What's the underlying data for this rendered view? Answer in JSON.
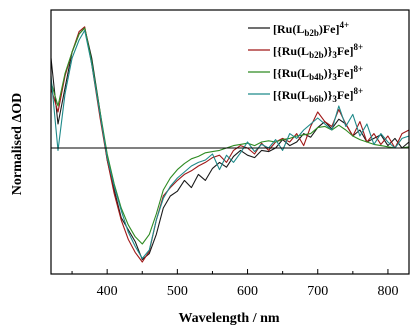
{
  "chart_data": {
    "type": "line",
    "title": "",
    "xlabel": "Wavelength / nm",
    "ylabel": "Normalised  ΔOD",
    "xlim": [
      320,
      830
    ],
    "ylim": [
      -1.05,
      1.15
    ],
    "xticks": [
      400,
      500,
      600,
      700,
      800
    ],
    "zero_line": true,
    "grid": false,
    "legend_position": "top-right",
    "series": [
      {
        "id": "s1",
        "color": "#1a1a1a",
        "label_parts": [
          {
            "t": "[Ru(L"
          },
          {
            "t": "b2b",
            "sub": true
          },
          {
            "t": ")Fe]"
          },
          {
            "t": "4+",
            "sup": true
          }
        ],
        "x": [
          320,
          330,
          340,
          350,
          360,
          368,
          378,
          390,
          400,
          410,
          420,
          430,
          440,
          450,
          460,
          470,
          480,
          490,
          500,
          510,
          520,
          530,
          540,
          550,
          560,
          570,
          580,
          590,
          600,
          610,
          620,
          630,
          640,
          650,
          660,
          670,
          680,
          690,
          700,
          710,
          720,
          730,
          740,
          750,
          760,
          770,
          780,
          790,
          800,
          810,
          820,
          830
        ],
        "y": [
          0.75,
          0.2,
          0.5,
          0.8,
          0.95,
          1.0,
          0.75,
          0.3,
          -0.1,
          -0.35,
          -0.58,
          -0.68,
          -0.78,
          -0.93,
          -0.88,
          -0.72,
          -0.5,
          -0.4,
          -0.36,
          -0.27,
          -0.33,
          -0.22,
          -0.27,
          -0.17,
          -0.12,
          -0.16,
          -0.07,
          -0.02,
          -0.06,
          -0.08,
          -0.02,
          -0.03,
          0.0,
          0.07,
          0.02,
          0.05,
          0.12,
          0.09,
          0.17,
          0.22,
          0.16,
          0.24,
          0.2,
          0.1,
          0.15,
          0.05,
          0.08,
          0.11,
          0.02,
          0.08,
          0.0,
          0.05
        ]
      },
      {
        "id": "s2",
        "color": "#a01818",
        "label_parts": [
          {
            "t": "[{Ru(L"
          },
          {
            "t": "b2b",
            "sub": true
          },
          {
            "t": ")}"
          },
          {
            "t": "3",
            "sub": true
          },
          {
            "t": "Fe]"
          },
          {
            "t": "8+",
            "sup": true
          }
        ],
        "x": [
          320,
          330,
          340,
          350,
          360,
          368,
          378,
          390,
          400,
          410,
          420,
          430,
          440,
          450,
          460,
          470,
          480,
          490,
          500,
          510,
          520,
          530,
          540,
          550,
          560,
          570,
          580,
          590,
          600,
          610,
          620,
          630,
          640,
          650,
          660,
          670,
          680,
          690,
          700,
          710,
          720,
          730,
          740,
          750,
          760,
          770,
          780,
          790,
          800,
          810,
          820,
          830
        ],
        "y": [
          0.5,
          0.3,
          0.6,
          0.8,
          0.97,
          1.01,
          0.7,
          0.25,
          -0.1,
          -0.38,
          -0.6,
          -0.76,
          -0.87,
          -0.95,
          -0.86,
          -0.6,
          -0.4,
          -0.33,
          -0.27,
          -0.22,
          -0.19,
          -0.15,
          -0.12,
          -0.08,
          -0.06,
          -0.12,
          -0.02,
          0.02,
          0.0,
          -0.05,
          0.04,
          -0.02,
          0.05,
          0.08,
          0.05,
          0.12,
          0.02,
          0.18,
          0.3,
          0.22,
          0.18,
          0.32,
          0.2,
          0.1,
          0.22,
          0.05,
          0.12,
          0.03,
          0.1,
          0.0,
          0.12,
          0.15
        ]
      },
      {
        "id": "s3",
        "color": "#2e8b22",
        "label_parts": [
          {
            "t": "[{Ru(L"
          },
          {
            "t": "b4b",
            "sub": true
          },
          {
            "t": ")}"
          },
          {
            "t": "3",
            "sub": true
          },
          {
            "t": "Fe]"
          },
          {
            "t": "8+",
            "sup": true
          }
        ],
        "x": [
          320,
          330,
          340,
          350,
          360,
          368,
          378,
          390,
          400,
          410,
          420,
          430,
          440,
          450,
          460,
          470,
          480,
          490,
          500,
          510,
          520,
          530,
          540,
          550,
          560,
          570,
          580,
          590,
          600,
          610,
          620,
          630,
          640,
          650,
          660,
          670,
          680,
          690,
          700,
          710,
          720,
          730,
          740,
          750,
          760,
          770,
          780,
          790,
          800,
          810,
          820,
          830
        ],
        "y": [
          0.55,
          0.35,
          0.62,
          0.8,
          0.95,
          1.0,
          0.72,
          0.3,
          -0.05,
          -0.3,
          -0.5,
          -0.64,
          -0.74,
          -0.8,
          -0.72,
          -0.55,
          -0.35,
          -0.25,
          -0.18,
          -0.13,
          -0.09,
          -0.07,
          -0.04,
          -0.03,
          -0.02,
          0.0,
          0.02,
          0.03,
          0.04,
          0.02,
          0.05,
          0.06,
          0.05,
          0.07,
          0.08,
          0.1,
          0.11,
          0.12,
          0.17,
          0.18,
          0.15,
          0.19,
          0.15,
          0.1,
          0.07,
          0.05,
          0.03,
          0.02,
          0.01,
          0.0,
          0.0,
          0.01
        ]
      },
      {
        "id": "s4",
        "color": "#1f8a8a",
        "label_parts": [
          {
            "t": "[{Ru(L"
          },
          {
            "t": "b6b",
            "sub": true
          },
          {
            "t": ")}"
          },
          {
            "t": "3",
            "sub": true
          },
          {
            "t": "Fe]"
          },
          {
            "t": "8+",
            "sup": true
          }
        ],
        "x": [
          320,
          330,
          340,
          350,
          360,
          368,
          378,
          390,
          400,
          410,
          420,
          430,
          440,
          450,
          460,
          470,
          480,
          490,
          500,
          510,
          520,
          530,
          540,
          550,
          560,
          570,
          580,
          590,
          600,
          610,
          620,
          630,
          640,
          650,
          660,
          670,
          680,
          690,
          700,
          710,
          720,
          730,
          740,
          750,
          760,
          770,
          780,
          790,
          800,
          810,
          820,
          830
        ],
        "y": [
          0.6,
          -0.02,
          0.45,
          0.75,
          0.9,
          0.98,
          0.7,
          0.28,
          -0.08,
          -0.32,
          -0.52,
          -0.7,
          -0.82,
          -0.92,
          -0.85,
          -0.6,
          -0.42,
          -0.32,
          -0.25,
          -0.2,
          -0.15,
          -0.12,
          -0.1,
          -0.05,
          -0.18,
          -0.06,
          -0.12,
          -0.04,
          0.05,
          -0.03,
          0.03,
          0.0,
          0.07,
          -0.02,
          0.12,
          0.08,
          0.15,
          0.2,
          0.25,
          0.2,
          0.15,
          0.35,
          0.18,
          0.28,
          0.1,
          0.2,
          0.03,
          0.12,
          0.05,
          0.0,
          0.08,
          0.1
        ]
      }
    ]
  }
}
